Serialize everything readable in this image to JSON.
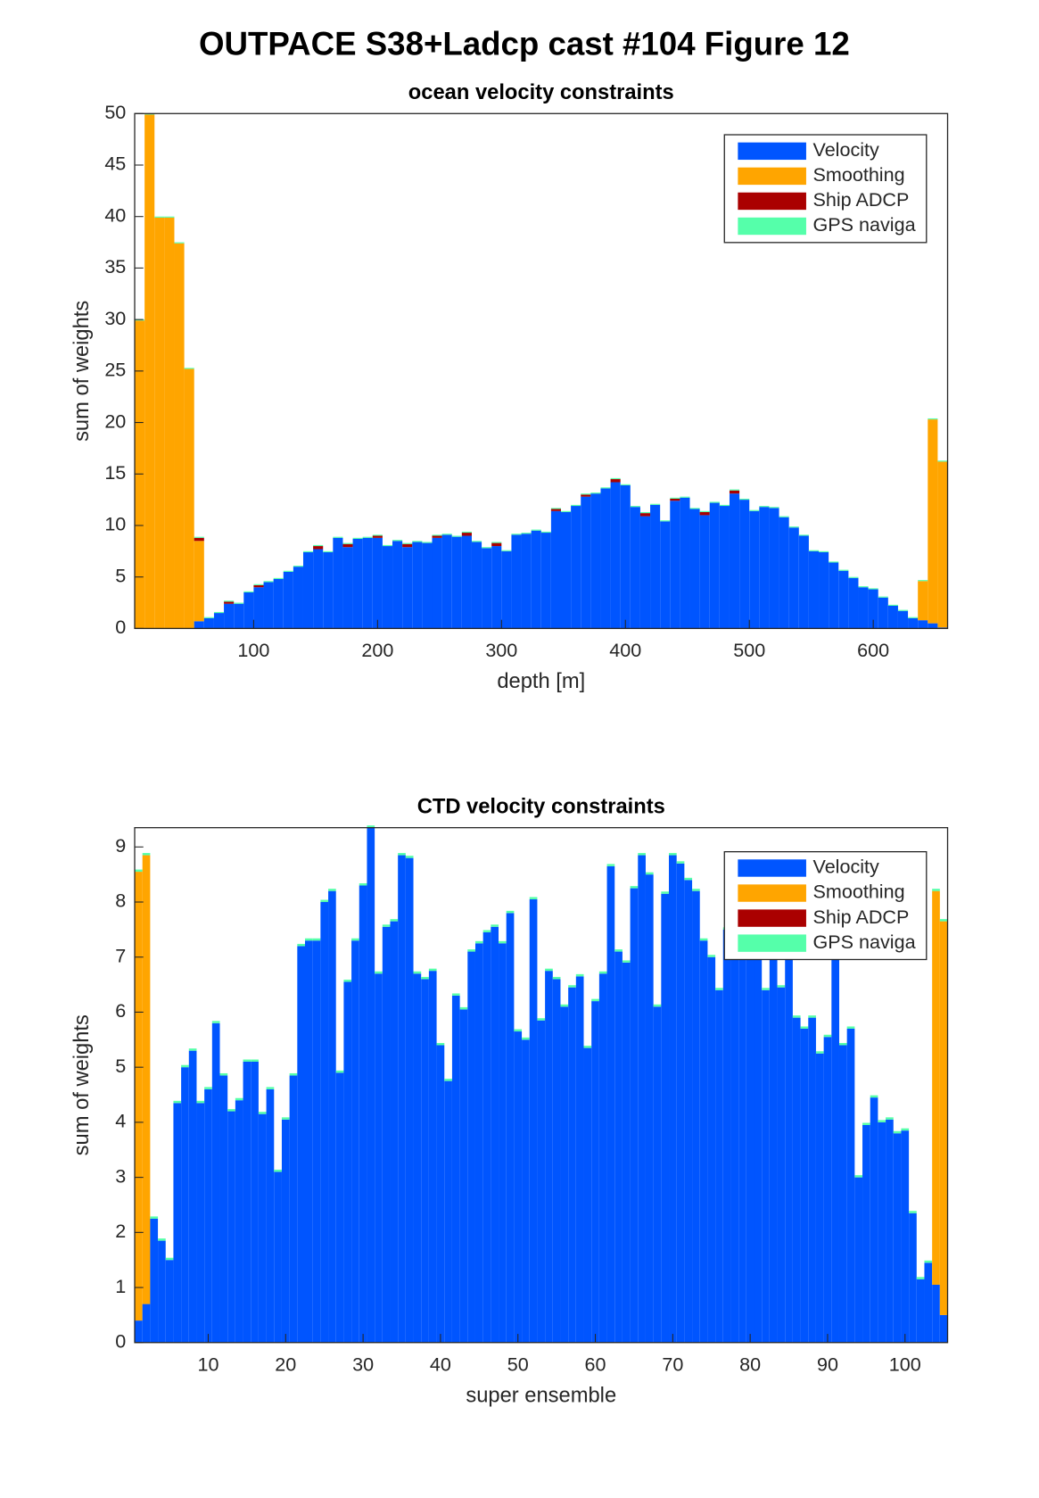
{
  "title": "OUTPACE S38+Ladcp cast #104  Figure 12",
  "chart_data": [
    {
      "type": "bar",
      "stacked": true,
      "title": "ocean velocity constraints",
      "xlabel": "depth [m]",
      "ylabel": "sum of weights",
      "x": [
        8,
        16,
        24,
        32,
        40,
        48,
        56,
        64,
        72,
        80,
        88,
        96,
        104,
        112,
        120,
        128,
        136,
        144,
        152,
        160,
        168,
        176,
        184,
        192,
        200,
        208,
        216,
        224,
        232,
        240,
        248,
        256,
        264,
        272,
        280,
        288,
        296,
        304,
        312,
        320,
        328,
        336,
        344,
        352,
        360,
        368,
        376,
        384,
        392,
        400,
        408,
        416,
        424,
        432,
        440,
        448,
        456,
        464,
        472,
        480,
        488,
        496,
        504,
        512,
        520,
        528,
        536,
        544,
        552,
        560,
        568,
        576,
        584,
        592,
        600,
        608,
        616,
        624,
        632,
        640,
        648,
        656
      ],
      "series": [
        {
          "name": "Velocity",
          "color": "#0055ff",
          "values": [
            0,
            0,
            0,
            0,
            0,
            0,
            0.7,
            1.0,
            1.5,
            2.4,
            2.4,
            3.5,
            4.0,
            4.5,
            4.8,
            5.5,
            6.0,
            7.4,
            7.7,
            7.4,
            8.8,
            7.9,
            8.7,
            8.8,
            8.8,
            8.0,
            8.5,
            7.9,
            8.4,
            8.3,
            8.8,
            9.1,
            8.9,
            9.0,
            8.4,
            7.8,
            8.0,
            7.5,
            9.1,
            9.2,
            9.5,
            9.3,
            11.4,
            11.3,
            11.9,
            12.8,
            13.1,
            13.6,
            14.2,
            13.9,
            11.8,
            10.9,
            12.0,
            10.4,
            12.4,
            12.7,
            11.6,
            11.0,
            12.2,
            11.9,
            13.1,
            12.5,
            11.4,
            11.8,
            11.7,
            10.8,
            9.8,
            9.0,
            7.5,
            7.4,
            6.4,
            5.6,
            4.9,
            4.0,
            3.8,
            3.0,
            2.2,
            1.7,
            1.0,
            0.8,
            0.5,
            0.1
          ]
        },
        {
          "name": "Smoothing",
          "color": "#ffa500",
          "values": [
            29.9,
            49.9,
            39.9,
            39.9,
            37.4,
            25.2,
            7.8,
            0,
            0,
            0,
            0,
            0,
            0,
            0,
            0,
            0,
            0,
            0,
            0,
            0,
            0,
            0,
            0,
            0,
            0,
            0,
            0,
            0,
            0,
            0,
            0,
            0,
            0,
            0,
            0,
            0,
            0,
            0,
            0,
            0,
            0,
            0,
            0,
            0,
            0,
            0,
            0,
            0,
            0,
            0,
            0,
            0,
            0,
            0,
            0,
            0,
            0,
            0,
            0,
            0,
            0,
            0,
            0,
            0,
            0,
            0,
            0,
            0,
            0,
            0,
            0,
            0,
            0,
            0,
            0,
            0,
            0,
            0,
            0,
            3.8,
            19.8,
            16.1
          ]
        },
        {
          "name": "Ship ADCP",
          "color": "#aa0000",
          "values": [
            0,
            0,
            0,
            0,
            0,
            0,
            0.3,
            0,
            0,
            0.2,
            0,
            0,
            0.2,
            0,
            0,
            0,
            0,
            0,
            0.3,
            0,
            0,
            0.3,
            0,
            0,
            0.2,
            0,
            0,
            0.3,
            0,
            0,
            0.2,
            0,
            0,
            0.3,
            0,
            0,
            0.3,
            0,
            0,
            0,
            0,
            0,
            0.2,
            0,
            0,
            0.2,
            0,
            0,
            0.3,
            0,
            0,
            0.3,
            0,
            0,
            0.2,
            0,
            0,
            0.3,
            0,
            0,
            0.3,
            0,
            0,
            0,
            0,
            0,
            0,
            0,
            0,
            0,
            0,
            0,
            0,
            0,
            0,
            0,
            0,
            0,
            0,
            0,
            0,
            0
          ]
        },
        {
          "name": "GPS naviga",
          "color": "#55ffaa",
          "values": [
            0.1,
            0.1,
            0.1,
            0.1,
            0.1,
            0.1,
            0.1,
            0.1,
            0.1,
            0.1,
            0.1,
            0.1,
            0.1,
            0.1,
            0.1,
            0.1,
            0.1,
            0.1,
            0.1,
            0.1,
            0.1,
            0.1,
            0.1,
            0.1,
            0.1,
            0.1,
            0.1,
            0.1,
            0.1,
            0.1,
            0.1,
            0.1,
            0.1,
            0.1,
            0.1,
            0.1,
            0.1,
            0.1,
            0.1,
            0.1,
            0.1,
            0.1,
            0.1,
            0.1,
            0.1,
            0.1,
            0.1,
            0.1,
            0.1,
            0.1,
            0.1,
            0.1,
            0.1,
            0.1,
            0.1,
            0.1,
            0.1,
            0.1,
            0.1,
            0.1,
            0.1,
            0.1,
            0.1,
            0.1,
            0.1,
            0.1,
            0.1,
            0.1,
            0.1,
            0.1,
            0.1,
            0.1,
            0.1,
            0.1,
            0.1,
            0.1,
            0.1,
            0.1,
            0.1,
            0.1,
            0.1,
            0.1
          ]
        }
      ],
      "xlim": [
        4,
        660
      ],
      "ylim": [
        0,
        50
      ],
      "xticks": [
        100,
        200,
        300,
        400,
        500,
        600
      ],
      "yticks": [
        0,
        5,
        10,
        15,
        20,
        25,
        30,
        35,
        40,
        45,
        50
      ],
      "legend": "upper right",
      "grid": false
    },
    {
      "type": "bar",
      "stacked": true,
      "title": "CTD velocity constraints",
      "xlabel": "super ensemble",
      "ylabel": "sum of weights",
      "x": [
        1,
        2,
        3,
        4,
        5,
        6,
        7,
        8,
        9,
        10,
        11,
        12,
        13,
        14,
        15,
        16,
        17,
        18,
        19,
        20,
        21,
        22,
        23,
        24,
        25,
        26,
        27,
        28,
        29,
        30,
        31,
        32,
        33,
        34,
        35,
        36,
        37,
        38,
        39,
        40,
        41,
        42,
        43,
        44,
        45,
        46,
        47,
        48,
        49,
        50,
        51,
        52,
        53,
        54,
        55,
        56,
        57,
        58,
        59,
        60,
        61,
        62,
        63,
        64,
        65,
        66,
        67,
        68,
        69,
        70,
        71,
        72,
        73,
        74,
        75,
        76,
        77,
        78,
        79,
        80,
        81,
        82,
        83,
        84,
        85,
        86,
        87,
        88,
        89,
        90,
        91,
        92,
        93,
        94,
        95,
        96,
        97,
        98,
        99,
        100,
        101,
        102,
        103,
        104,
        105
      ],
      "series": [
        {
          "name": "Velocity",
          "color": "#0055ff",
          "values": [
            0.4,
            0.7,
            2.25,
            1.85,
            1.5,
            4.35,
            5.0,
            5.3,
            4.35,
            4.6,
            5.8,
            4.85,
            4.2,
            4.4,
            5.1,
            5.1,
            4.15,
            4.6,
            3.1,
            4.05,
            4.85,
            7.2,
            7.3,
            7.3,
            8.0,
            8.2,
            4.9,
            6.55,
            7.3,
            8.3,
            9.35,
            6.7,
            7.55,
            7.65,
            8.85,
            8.8,
            6.7,
            6.6,
            6.75,
            5.4,
            4.75,
            6.3,
            6.05,
            7.1,
            7.25,
            7.45,
            7.55,
            7.25,
            7.8,
            5.65,
            5.5,
            8.05,
            5.85,
            6.75,
            6.6,
            6.1,
            6.45,
            6.65,
            5.35,
            6.2,
            6.7,
            8.65,
            7.1,
            6.9,
            8.25,
            8.85,
            8.5,
            6.1,
            8.15,
            8.85,
            8.7,
            8.4,
            8.2,
            7.3,
            7.0,
            6.4,
            7.5,
            7.2,
            7.5,
            7.4,
            7.0,
            6.4,
            7.8,
            6.45,
            7.0,
            5.9,
            5.7,
            5.9,
            5.25,
            5.55,
            6.95,
            5.4,
            5.7,
            3.0,
            3.95,
            4.45,
            4.0,
            4.05,
            3.8,
            3.85,
            2.35,
            1.15,
            1.45,
            1.05,
            0.5
          ]
        },
        {
          "name": "Smoothing",
          "color": "#ffa500",
          "values": [
            8.15,
            8.15,
            0,
            0,
            0,
            0,
            0,
            0,
            0,
            0,
            0,
            0,
            0,
            0,
            0,
            0,
            0,
            0,
            0,
            0,
            0,
            0,
            0,
            0,
            0,
            0,
            0,
            0,
            0,
            0,
            0,
            0,
            0,
            0,
            0,
            0,
            0,
            0,
            0,
            0,
            0,
            0,
            0,
            0,
            0,
            0,
            0,
            0,
            0,
            0,
            0,
            0,
            0,
            0,
            0,
            0,
            0,
            0,
            0,
            0,
            0,
            0,
            0,
            0,
            0,
            0,
            0,
            0,
            0,
            0,
            0,
            0,
            0,
            0,
            0,
            0,
            0,
            0,
            0,
            0,
            0,
            0,
            0,
            0,
            0,
            0,
            0,
            0,
            0,
            0,
            0,
            0,
            0,
            0,
            0,
            0,
            0,
            0,
            0,
            0,
            0,
            0,
            0,
            7.15,
            7.15
          ]
        },
        {
          "name": "Ship ADCP",
          "color": "#aa0000",
          "values": [
            0,
            0,
            0,
            0,
            0,
            0,
            0,
            0,
            0,
            0,
            0,
            0,
            0,
            0,
            0,
            0,
            0,
            0,
            0,
            0,
            0,
            0,
            0,
            0,
            0,
            0,
            0,
            0,
            0,
            0,
            0,
            0,
            0,
            0,
            0,
            0,
            0,
            0,
            0,
            0,
            0,
            0,
            0,
            0,
            0,
            0,
            0,
            0,
            0,
            0,
            0,
            0,
            0,
            0,
            0,
            0,
            0,
            0,
            0,
            0,
            0,
            0,
            0,
            0,
            0,
            0,
            0,
            0,
            0,
            0,
            0,
            0,
            0,
            0,
            0,
            0,
            0,
            0,
            0,
            0,
            0,
            0,
            0,
            0,
            0,
            0,
            0,
            0,
            0,
            0,
            0,
            0,
            0,
            0,
            0,
            0,
            0,
            0,
            0,
            0,
            0,
            0,
            0,
            0,
            0
          ]
        },
        {
          "name": "GPS naviga",
          "color": "#55ffaa",
          "values": [
            0.04,
            0.04,
            0.04,
            0.04,
            0.04,
            0.04,
            0.04,
            0.04,
            0.04,
            0.04,
            0.04,
            0.04,
            0.04,
            0.04,
            0.04,
            0.04,
            0.04,
            0.04,
            0.04,
            0.04,
            0.04,
            0.04,
            0.04,
            0.04,
            0.04,
            0.04,
            0.04,
            0.04,
            0.04,
            0.04,
            0.04,
            0.04,
            0.04,
            0.04,
            0.04,
            0.04,
            0.04,
            0.04,
            0.04,
            0.04,
            0.04,
            0.04,
            0.04,
            0.04,
            0.04,
            0.04,
            0.04,
            0.04,
            0.04,
            0.04,
            0.04,
            0.04,
            0.04,
            0.04,
            0.04,
            0.04,
            0.04,
            0.04,
            0.04,
            0.04,
            0.04,
            0.04,
            0.04,
            0.04,
            0.04,
            0.04,
            0.04,
            0.04,
            0.04,
            0.04,
            0.04,
            0.04,
            0.04,
            0.04,
            0.04,
            0.04,
            0.04,
            0.04,
            0.04,
            0.04,
            0.04,
            0.04,
            0.04,
            0.04,
            0.04,
            0.04,
            0.04,
            0.04,
            0.04,
            0.04,
            0.04,
            0.04,
            0.04,
            0.04,
            0.04,
            0.04,
            0.04,
            0.04,
            0.04,
            0.04,
            0.04,
            0.04,
            0.04,
            0.04,
            0.04
          ]
        }
      ],
      "xlim": [
        0.5,
        105.5
      ],
      "ylim": [
        0,
        9.35
      ],
      "xticks": [
        10,
        20,
        30,
        40,
        50,
        60,
        70,
        80,
        90,
        100
      ],
      "yticks": [
        0,
        1,
        2,
        3,
        4,
        5,
        6,
        7,
        8,
        9
      ],
      "legend": "upper right",
      "grid": false
    }
  ]
}
